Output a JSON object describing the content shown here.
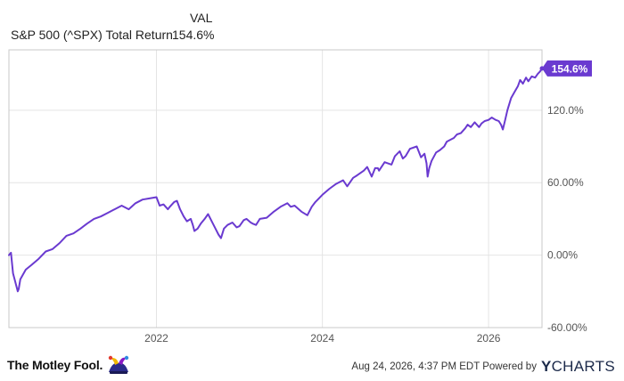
{
  "legend": {
    "val_header": "VAL",
    "series_name": "S&P 500 (^SPX) Total Return",
    "series_value": "154.6%"
  },
  "chart_data": {
    "type": "line",
    "title": "",
    "xlabel": "",
    "ylabel": "",
    "x_ticks": [
      "2022",
      "2024",
      "2026"
    ],
    "y_ticks": [
      "-60.00%",
      "0.00%",
      "60.00%",
      "120.0%"
    ],
    "ylim": [
      -60,
      170
    ],
    "xlim": [
      "2020-03-23",
      "2026-08-24"
    ],
    "grid": true,
    "legend_position": "top-left",
    "last_value_label": "154.6%",
    "series": [
      {
        "name": "S&P 500 (^SPX) Total Return",
        "color": "#6a3ad0",
        "points": [
          [
            "2020-03-23",
            0
          ],
          [
            "2020-04-01",
            2
          ],
          [
            "2020-04-10",
            -15
          ],
          [
            "2020-04-20",
            -22
          ],
          [
            "2020-05-01",
            -30
          ],
          [
            "2020-05-05",
            -28
          ],
          [
            "2020-05-12",
            -20
          ],
          [
            "2020-06-05",
            -12
          ],
          [
            "2020-07-01",
            -8
          ],
          [
            "2020-08-01",
            -3
          ],
          [
            "2020-09-01",
            3
          ],
          [
            "2020-10-01",
            5
          ],
          [
            "2020-11-01",
            10
          ],
          [
            "2020-12-01",
            16
          ],
          [
            "2021-01-01",
            18
          ],
          [
            "2021-02-01",
            22
          ],
          [
            "2021-03-01",
            26
          ],
          [
            "2021-04-01",
            30
          ],
          [
            "2021-05-01",
            32
          ],
          [
            "2021-06-01",
            35
          ],
          [
            "2021-07-01",
            38
          ],
          [
            "2021-08-01",
            41
          ],
          [
            "2021-09-01",
            38
          ],
          [
            "2021-10-01",
            43
          ],
          [
            "2021-11-01",
            46
          ],
          [
            "2021-12-01",
            47
          ],
          [
            "2022-01-01",
            48
          ],
          [
            "2022-01-15",
            41
          ],
          [
            "2022-02-01",
            42
          ],
          [
            "2022-02-20",
            38
          ],
          [
            "2022-03-01",
            40
          ],
          [
            "2022-03-20",
            44
          ],
          [
            "2022-04-01",
            45
          ],
          [
            "2022-04-15",
            38
          ],
          [
            "2022-05-01",
            32
          ],
          [
            "2022-05-15",
            28
          ],
          [
            "2022-06-01",
            30
          ],
          [
            "2022-06-10",
            25
          ],
          [
            "2022-06-17",
            20
          ],
          [
            "2022-07-01",
            22
          ],
          [
            "2022-07-15",
            26
          ],
          [
            "2022-08-01",
            30
          ],
          [
            "2022-08-16",
            34
          ],
          [
            "2022-09-01",
            28
          ],
          [
            "2022-09-15",
            23
          ],
          [
            "2022-10-01",
            17
          ],
          [
            "2022-10-12",
            14
          ],
          [
            "2022-10-25",
            22
          ],
          [
            "2022-11-10",
            25
          ],
          [
            "2022-12-01",
            27
          ],
          [
            "2022-12-20",
            23
          ],
          [
            "2023-01-01",
            24
          ],
          [
            "2023-01-20",
            29
          ],
          [
            "2023-02-01",
            30
          ],
          [
            "2023-02-20",
            27
          ],
          [
            "2023-03-01",
            26
          ],
          [
            "2023-03-15",
            25
          ],
          [
            "2023-04-01",
            30
          ],
          [
            "2023-05-01",
            31
          ],
          [
            "2023-06-01",
            36
          ],
          [
            "2023-07-01",
            40
          ],
          [
            "2023-07-31",
            43
          ],
          [
            "2023-08-15",
            40
          ],
          [
            "2023-09-01",
            41
          ],
          [
            "2023-10-01",
            36
          ],
          [
            "2023-10-27",
            33
          ],
          [
            "2023-11-15",
            40
          ],
          [
            "2023-12-01",
            44
          ],
          [
            "2024-01-01",
            50
          ],
          [
            "2024-02-01",
            55
          ],
          [
            "2024-03-01",
            59
          ],
          [
            "2024-04-01",
            62
          ],
          [
            "2024-04-19",
            57
          ],
          [
            "2024-05-15",
            64
          ],
          [
            "2024-06-01",
            66
          ],
          [
            "2024-07-01",
            70
          ],
          [
            "2024-07-16",
            73
          ],
          [
            "2024-08-05",
            65
          ],
          [
            "2024-08-20",
            72
          ],
          [
            "2024-09-01",
            72
          ],
          [
            "2024-09-06",
            70
          ],
          [
            "2024-10-01",
            77
          ],
          [
            "2024-10-31",
            75
          ],
          [
            "2024-11-15",
            82
          ],
          [
            "2024-12-06",
            86
          ],
          [
            "2024-12-20",
            80
          ],
          [
            "2025-01-01",
            82
          ],
          [
            "2025-01-20",
            88
          ],
          [
            "2025-02-19",
            90
          ],
          [
            "2025-03-10",
            81
          ],
          [
            "2025-03-25",
            84
          ],
          [
            "2025-04-03",
            76
          ],
          [
            "2025-04-08",
            65
          ],
          [
            "2025-04-15",
            72
          ],
          [
            "2025-04-25",
            78
          ],
          [
            "2025-05-15",
            85
          ],
          [
            "2025-06-01",
            87
          ],
          [
            "2025-06-20",
            90
          ],
          [
            "2025-07-01",
            94
          ],
          [
            "2025-08-01",
            97
          ],
          [
            "2025-08-15",
            100
          ],
          [
            "2025-09-01",
            101
          ],
          [
            "2025-09-20",
            105
          ],
          [
            "2025-10-01",
            108
          ],
          [
            "2025-10-15",
            106
          ],
          [
            "2025-11-01",
            110
          ],
          [
            "2025-11-20",
            106
          ],
          [
            "2025-12-01",
            109
          ],
          [
            "2025-12-15",
            111
          ],
          [
            "2026-01-01",
            112
          ],
          [
            "2026-01-15",
            114
          ],
          [
            "2026-02-01",
            112
          ],
          [
            "2026-02-15",
            111
          ],
          [
            "2026-02-25",
            108
          ],
          [
            "2026-03-05",
            104
          ],
          [
            "2026-03-15",
            112
          ],
          [
            "2026-03-25",
            120
          ],
          [
            "2026-04-10",
            130
          ],
          [
            "2026-04-25",
            135
          ],
          [
            "2026-05-10",
            140
          ],
          [
            "2026-05-20",
            145
          ],
          [
            "2026-06-01",
            142
          ],
          [
            "2026-06-15",
            147
          ],
          [
            "2026-06-25",
            144
          ],
          [
            "2026-07-10",
            148
          ],
          [
            "2026-07-25",
            147
          ],
          [
            "2026-08-05",
            150
          ],
          [
            "2026-08-15",
            152
          ],
          [
            "2026-08-24",
            154.6
          ]
        ]
      }
    ]
  },
  "footer": {
    "brand": "The Motley Fool.",
    "timestamp": "Aug 24, 2026, 4:37 PM EDT Powered by",
    "ycharts_y": "Y",
    "ycharts_rest": "CHARTS"
  },
  "colors": {
    "line": "#6a3ad0",
    "grid": "#e4e4e4",
    "axis": "#c8c8c8",
    "label_bg": "#6a3ad0",
    "label_text": "#ffffff"
  },
  "icons": [
    "jester-hat-icon"
  ]
}
